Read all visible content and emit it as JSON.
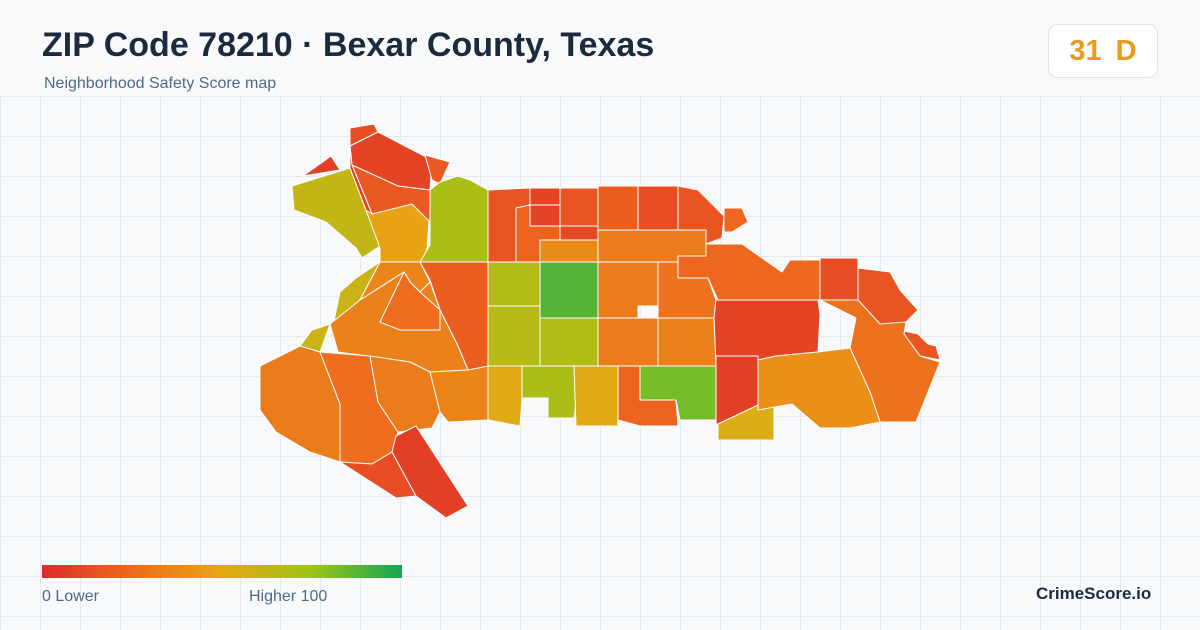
{
  "header": {
    "title": "ZIP Code 78210 · Bexar County, Texas",
    "subtitle": "Neighborhood Safety Score map"
  },
  "score": {
    "value": "31",
    "grade": "D",
    "color": "#eb9a1c"
  },
  "legend": {
    "min_label": "0  Lower",
    "max_label": "Higher  100",
    "colors": [
      "#dd2a2a",
      "#ee6b1e",
      "#e7a712",
      "#9cc41a",
      "#12a651"
    ]
  },
  "brand": "CrimeScore.io",
  "regions": [
    {
      "id": "r1",
      "score": 8
    },
    {
      "id": "r2",
      "score": 14
    },
    {
      "id": "r3",
      "score": 10
    },
    {
      "id": "r4",
      "score": 18
    },
    {
      "id": "r5",
      "score": 62
    },
    {
      "id": "r6",
      "score": 48
    },
    {
      "id": "r7",
      "score": 70
    },
    {
      "id": "r8",
      "score": 60
    },
    {
      "id": "r9",
      "score": 18
    },
    {
      "id": "r10",
      "score": 9
    },
    {
      "id": "r11",
      "score": 16
    },
    {
      "id": "r12",
      "score": 22
    },
    {
      "id": "r13",
      "score": 10
    },
    {
      "id": "r14",
      "score": 16
    },
    {
      "id": "r15",
      "score": 20
    },
    {
      "id": "r16",
      "score": 14
    },
    {
      "id": "r17",
      "score": 16
    },
    {
      "id": "r18",
      "score": 24
    },
    {
      "id": "r19",
      "score": 32
    },
    {
      "id": "r20",
      "score": 38
    },
    {
      "id": "r21",
      "score": 24
    },
    {
      "id": "r22",
      "score": 68
    },
    {
      "id": "r23",
      "score": 88
    },
    {
      "id": "r24",
      "score": 32
    },
    {
      "id": "r25",
      "score": 28
    },
    {
      "id": "r26",
      "score": 14
    },
    {
      "id": "r27",
      "score": 10
    },
    {
      "id": "r28",
      "score": 16
    },
    {
      "id": "r29",
      "score": 20
    },
    {
      "id": "r30",
      "score": 36
    },
    {
      "id": "r31",
      "score": 66
    },
    {
      "id": "r32",
      "score": 68
    },
    {
      "id": "r33",
      "score": 32
    },
    {
      "id": "r34",
      "score": 34
    },
    {
      "id": "r35",
      "score": 8
    },
    {
      "id": "r36",
      "score": 28
    },
    {
      "id": "r37",
      "score": 60
    },
    {
      "id": "r38",
      "score": 34
    },
    {
      "id": "r39",
      "score": 32
    },
    {
      "id": "r40",
      "score": 26
    },
    {
      "id": "r41",
      "score": 14
    },
    {
      "id": "r42",
      "score": 32
    },
    {
      "id": "r43",
      "score": 36
    },
    {
      "id": "r44",
      "score": 52
    },
    {
      "id": "r45",
      "score": 70
    },
    {
      "id": "r46",
      "score": 52
    },
    {
      "id": "r47",
      "score": 22
    },
    {
      "id": "r48",
      "score": 82
    },
    {
      "id": "r49",
      "score": 8
    },
    {
      "id": "r50",
      "score": 54
    },
    {
      "id": "r51",
      "score": 40
    },
    {
      "id": "r52",
      "score": 26
    },
    {
      "id": "r53",
      "score": 12
    },
    {
      "id": "r54",
      "score": 10
    }
  ]
}
